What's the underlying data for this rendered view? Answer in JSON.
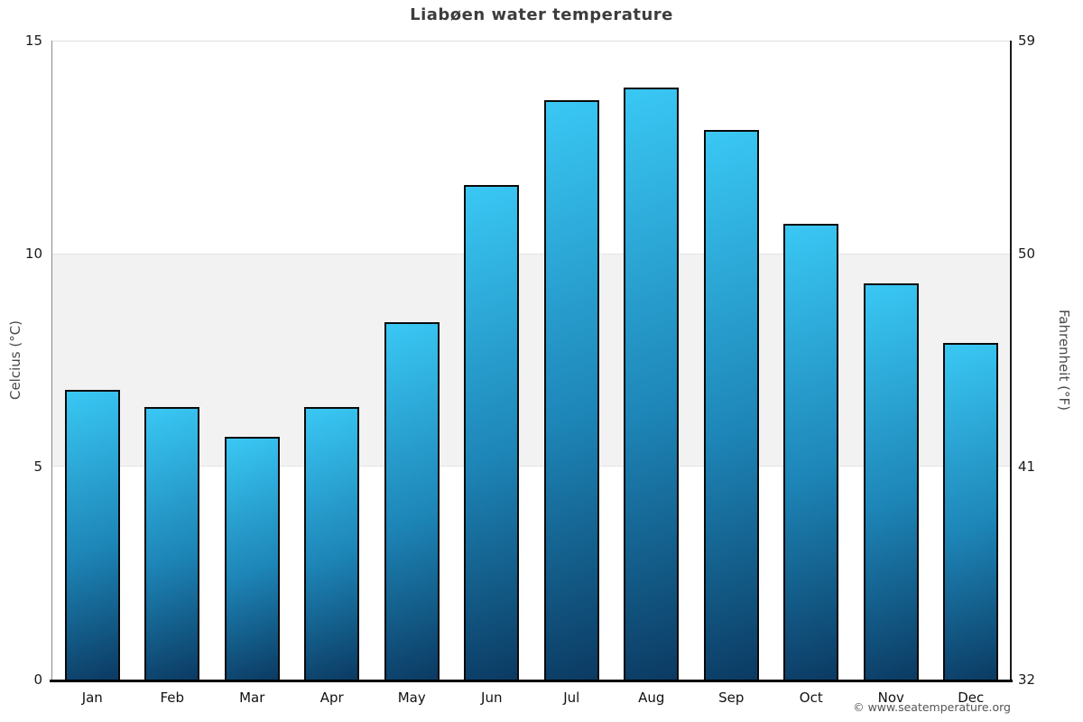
{
  "page": {
    "copyright": "© www.seatemperature.org"
  },
  "chart_data": {
    "type": "bar",
    "title": "Liabøen water temperature",
    "categories": [
      "Jan",
      "Feb",
      "Mar",
      "Apr",
      "May",
      "Jun",
      "Jul",
      "Aug",
      "Sep",
      "Oct",
      "Nov",
      "Dec"
    ],
    "values": [
      6.8,
      6.4,
      5.7,
      6.4,
      8.4,
      11.6,
      13.6,
      13.9,
      12.9,
      10.7,
      9.3,
      7.9
    ],
    "xlabel": "",
    "ylabel_left": "Celcius (°C)",
    "ylabel_right": "Fahrenheit (°F)",
    "yticks_left": [
      0,
      5,
      10,
      15
    ],
    "yticks_right": [
      32,
      41,
      50,
      59
    ],
    "ylim": [
      0,
      15
    ],
    "band": {
      "from": 5,
      "to": 10
    },
    "grid": false,
    "legend": false,
    "colors": {
      "bar_top": "#3ac8f4",
      "bar_mid": "#1d85b7",
      "bar_bottom": "#0b3a62",
      "bar_border": "#0a0a0a",
      "band_fill": "#f2f2f2",
      "title": "#3d3d3d"
    }
  }
}
